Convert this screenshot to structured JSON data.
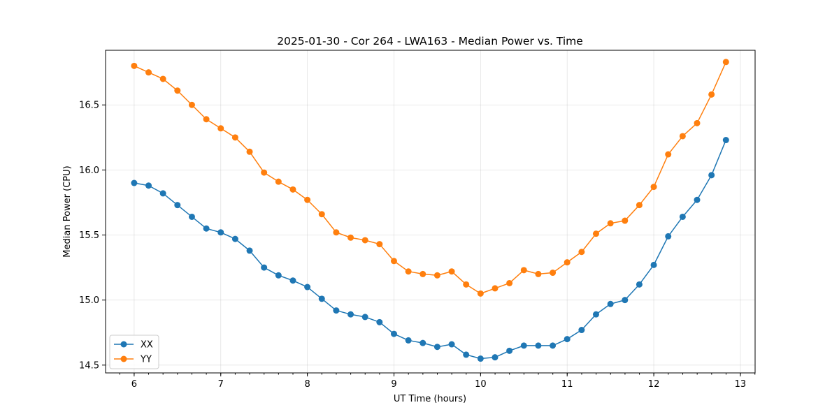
{
  "chart_data": {
    "type": "line",
    "title": "2025-01-30 - Cor 264 - LWA163 - Median Power vs. Time",
    "xlabel": "UT Time (hours)",
    "ylabel": "Median Power (CPU)",
    "xlim": [
      5.67,
      13.17
    ],
    "ylim": [
      14.44,
      16.92
    ],
    "xticks": [
      6,
      7,
      8,
      9,
      10,
      11,
      12,
      13
    ],
    "xtick_labels": [
      "6",
      "7",
      "8",
      "9",
      "10",
      "11",
      "12",
      "13"
    ],
    "yticks": [
      14.5,
      15.0,
      15.5,
      16.0,
      16.5
    ],
    "ytick_labels": [
      "14.5",
      "15.0",
      "15.5",
      "16.0",
      "16.5"
    ],
    "grid": true,
    "legend_position": "lower-left",
    "x": [
      6.0,
      6.1667,
      6.3333,
      6.5,
      6.6667,
      6.8333,
      7.0,
      7.1667,
      7.3333,
      7.5,
      7.6667,
      7.8333,
      8.0,
      8.1667,
      8.3333,
      8.5,
      8.6667,
      8.8333,
      9.0,
      9.1667,
      9.3333,
      9.5,
      9.6667,
      9.8333,
      10.0,
      10.1667,
      10.3333,
      10.5,
      10.6667,
      10.8333,
      11.0,
      11.1667,
      11.3333,
      11.5,
      11.6667,
      11.8333,
      12.0,
      12.1667,
      12.3333,
      12.5,
      12.6667,
      12.8333
    ],
    "series": [
      {
        "name": "XX",
        "color": "#1f77b4",
        "values": [
          15.9,
          15.88,
          15.82,
          15.73,
          15.64,
          15.55,
          15.52,
          15.47,
          15.38,
          15.25,
          15.19,
          15.15,
          15.1,
          15.01,
          14.92,
          14.89,
          14.87,
          14.83,
          14.74,
          14.69,
          14.67,
          14.64,
          14.66,
          14.58,
          14.55,
          14.56,
          14.61,
          14.65,
          14.65,
          14.65,
          14.7,
          14.77,
          14.89,
          14.97,
          15.0,
          15.12,
          15.27,
          15.49,
          15.64,
          15.77,
          15.96,
          16.23
        ]
      },
      {
        "name": "YY",
        "color": "#ff7f0e",
        "values": [
          16.8,
          16.75,
          16.7,
          16.61,
          16.5,
          16.39,
          16.32,
          16.25,
          16.14,
          15.98,
          15.91,
          15.85,
          15.77,
          15.66,
          15.52,
          15.48,
          15.46,
          15.43,
          15.3,
          15.22,
          15.2,
          15.19,
          15.22,
          15.12,
          15.05,
          15.09,
          15.13,
          15.23,
          15.2,
          15.21,
          15.29,
          15.37,
          15.51,
          15.59,
          15.61,
          15.73,
          15.87,
          16.12,
          16.26,
          16.36,
          16.58,
          16.83
        ]
      }
    ]
  }
}
